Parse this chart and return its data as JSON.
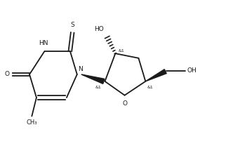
{
  "bg_color": "#ffffff",
  "line_color": "#1a1a1a",
  "line_width": 1.3,
  "font_size": 6.5,
  "fig_width": 3.32,
  "fig_height": 2.35,
  "dpi": 100,
  "xlim": [
    0,
    10
  ],
  "ylim": [
    0,
    7
  ]
}
